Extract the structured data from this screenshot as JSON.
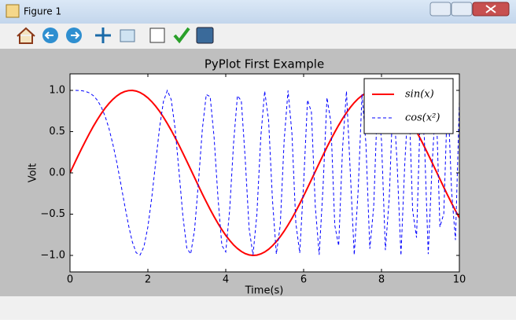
{
  "window": {
    "title": "Figure 1"
  },
  "chart_data": {
    "type": "line",
    "title": "PyPlot First Example",
    "x_label": "Time(s)",
    "y_label": "Volt",
    "x": [
      0,
      0.1,
      0.2,
      0.3,
      0.4,
      0.5,
      0.6,
      0.7,
      0.8,
      0.9,
      1.0,
      1.1,
      1.2,
      1.3,
      1.4,
      1.5,
      1.6,
      1.7,
      1.8,
      1.9,
      2.0,
      2.1,
      2.2,
      2.3,
      2.4,
      2.5,
      2.6,
      2.7,
      2.8,
      2.9,
      3.0,
      3.1,
      3.2,
      3.3,
      3.4,
      3.5,
      3.6,
      3.7,
      3.8,
      3.9,
      4.0,
      4.1,
      4.2,
      4.3,
      4.4,
      4.5,
      4.6,
      4.7,
      4.8,
      4.9,
      5.0,
      5.1,
      5.2,
      5.3,
      5.4,
      5.5,
      5.6,
      5.7,
      5.8,
      5.9,
      6.0,
      6.1,
      6.2,
      6.3,
      6.4,
      6.5,
      6.6,
      6.7,
      6.8,
      6.9,
      7.0,
      7.1,
      7.2,
      7.3,
      7.4,
      7.5,
      7.6,
      7.7,
      7.8,
      7.9,
      8.0,
      8.1,
      8.2,
      8.3,
      8.4,
      8.5,
      8.6,
      8.7,
      8.8,
      8.9,
      9.0,
      9.1,
      9.2,
      9.3,
      9.4,
      9.5,
      9.6,
      9.7,
      9.8,
      9.9,
      10
    ],
    "series": [
      {
        "name": "sin(x)",
        "color": "#ff0000",
        "style": "solid",
        "values": [
          0,
          0.1,
          0.199,
          0.296,
          0.389,
          0.479,
          0.565,
          0.644,
          0.717,
          0.783,
          0.841,
          0.891,
          0.932,
          0.964,
          0.985,
          0.997,
          1.0,
          0.992,
          0.974,
          0.946,
          0.909,
          0.863,
          0.808,
          0.746,
          0.675,
          0.598,
          0.516,
          0.427,
          0.335,
          0.239,
          0.141,
          0.042,
          -0.058,
          -0.158,
          -0.256,
          -0.351,
          -0.443,
          -0.53,
          -0.612,
          -0.688,
          -0.757,
          -0.818,
          -0.872,
          -0.916,
          -0.952,
          -0.978,
          -0.994,
          -1.0,
          -0.996,
          -0.982,
          -0.959,
          -0.926,
          -0.883,
          -0.832,
          -0.773,
          -0.706,
          -0.631,
          -0.551,
          -0.465,
          -0.374,
          -0.279,
          -0.182,
          -0.083,
          0.017,
          0.117,
          0.215,
          0.312,
          0.405,
          0.494,
          0.578,
          0.657,
          0.729,
          0.794,
          0.851,
          0.899,
          0.938,
          0.968,
          0.988,
          0.999,
          0.999,
          0.989,
          0.97,
          0.941,
          0.902,
          0.855,
          0.798,
          0.734,
          0.663,
          0.585,
          0.501,
          0.412,
          0.319,
          0.223,
          0.124,
          0.025,
          -0.075,
          -0.174,
          -0.272,
          -0.366,
          -0.458,
          -0.544
        ]
      },
      {
        "name": "cos(x²)",
        "color": "#0000ff",
        "style": "dashed",
        "values": [
          1,
          1.0,
          0.999,
          0.996,
          0.987,
          0.969,
          0.936,
          0.882,
          0.802,
          0.689,
          0.54,
          0.35,
          0.131,
          -0.119,
          -0.38,
          -0.628,
          -0.835,
          -0.968,
          -0.995,
          -0.892,
          -0.654,
          -0.298,
          0.127,
          0.548,
          0.866,
          0.999,
          0.888,
          0.535,
          0.014,
          -0.527,
          -0.911,
          -0.983,
          -0.686,
          -0.105,
          0.535,
          0.95,
          0.924,
          0.433,
          -0.298,
          -0.879,
          -0.958,
          -0.452,
          0.353,
          0.936,
          0.873,
          0.17,
          -0.674,
          -0.995,
          -0.499,
          0.433,
          0.991,
          0.639,
          -0.33,
          -0.983,
          -0.633,
          0.394,
          0.998,
          0.476,
          -0.608,
          -0.969,
          -0.128,
          0.883,
          0.738,
          -0.408,
          -0.992,
          -0.161,
          0.912,
          0.615,
          -0.634,
          -0.884,
          0.301,
          0.99,
          -0.004,
          -0.993,
          -0.216,
          0.956,
          0.352,
          -0.92,
          -0.409,
          0.912,
          0.392,
          -0.935,
          -0.3,
          0.975,
          0.125,
          -1.0,
          0.132,
          0.958,
          -0.454,
          -0.784,
          0.777,
          0.428,
          -0.983,
          0.096,
          0.923,
          -0.655,
          -0.494,
          0.988,
          -0.22,
          -0.813,
          0.862
        ]
      }
    ],
    "xlim": [
      0,
      10
    ],
    "ylim": [
      -1.2,
      1.2
    ],
    "xticks": [
      0,
      2,
      4,
      6,
      8,
      10
    ],
    "yticks": [
      {
        "value": -1.0,
        "label": "−1.0"
      },
      {
        "value": -0.5,
        "label": "−0.5"
      },
      {
        "value": 0.0,
        "label": "0.0"
      },
      {
        "value": 0.5,
        "label": "0.5"
      },
      {
        "value": 1.0,
        "label": "1.0"
      }
    ],
    "grid": false,
    "legend": "upper right"
  }
}
